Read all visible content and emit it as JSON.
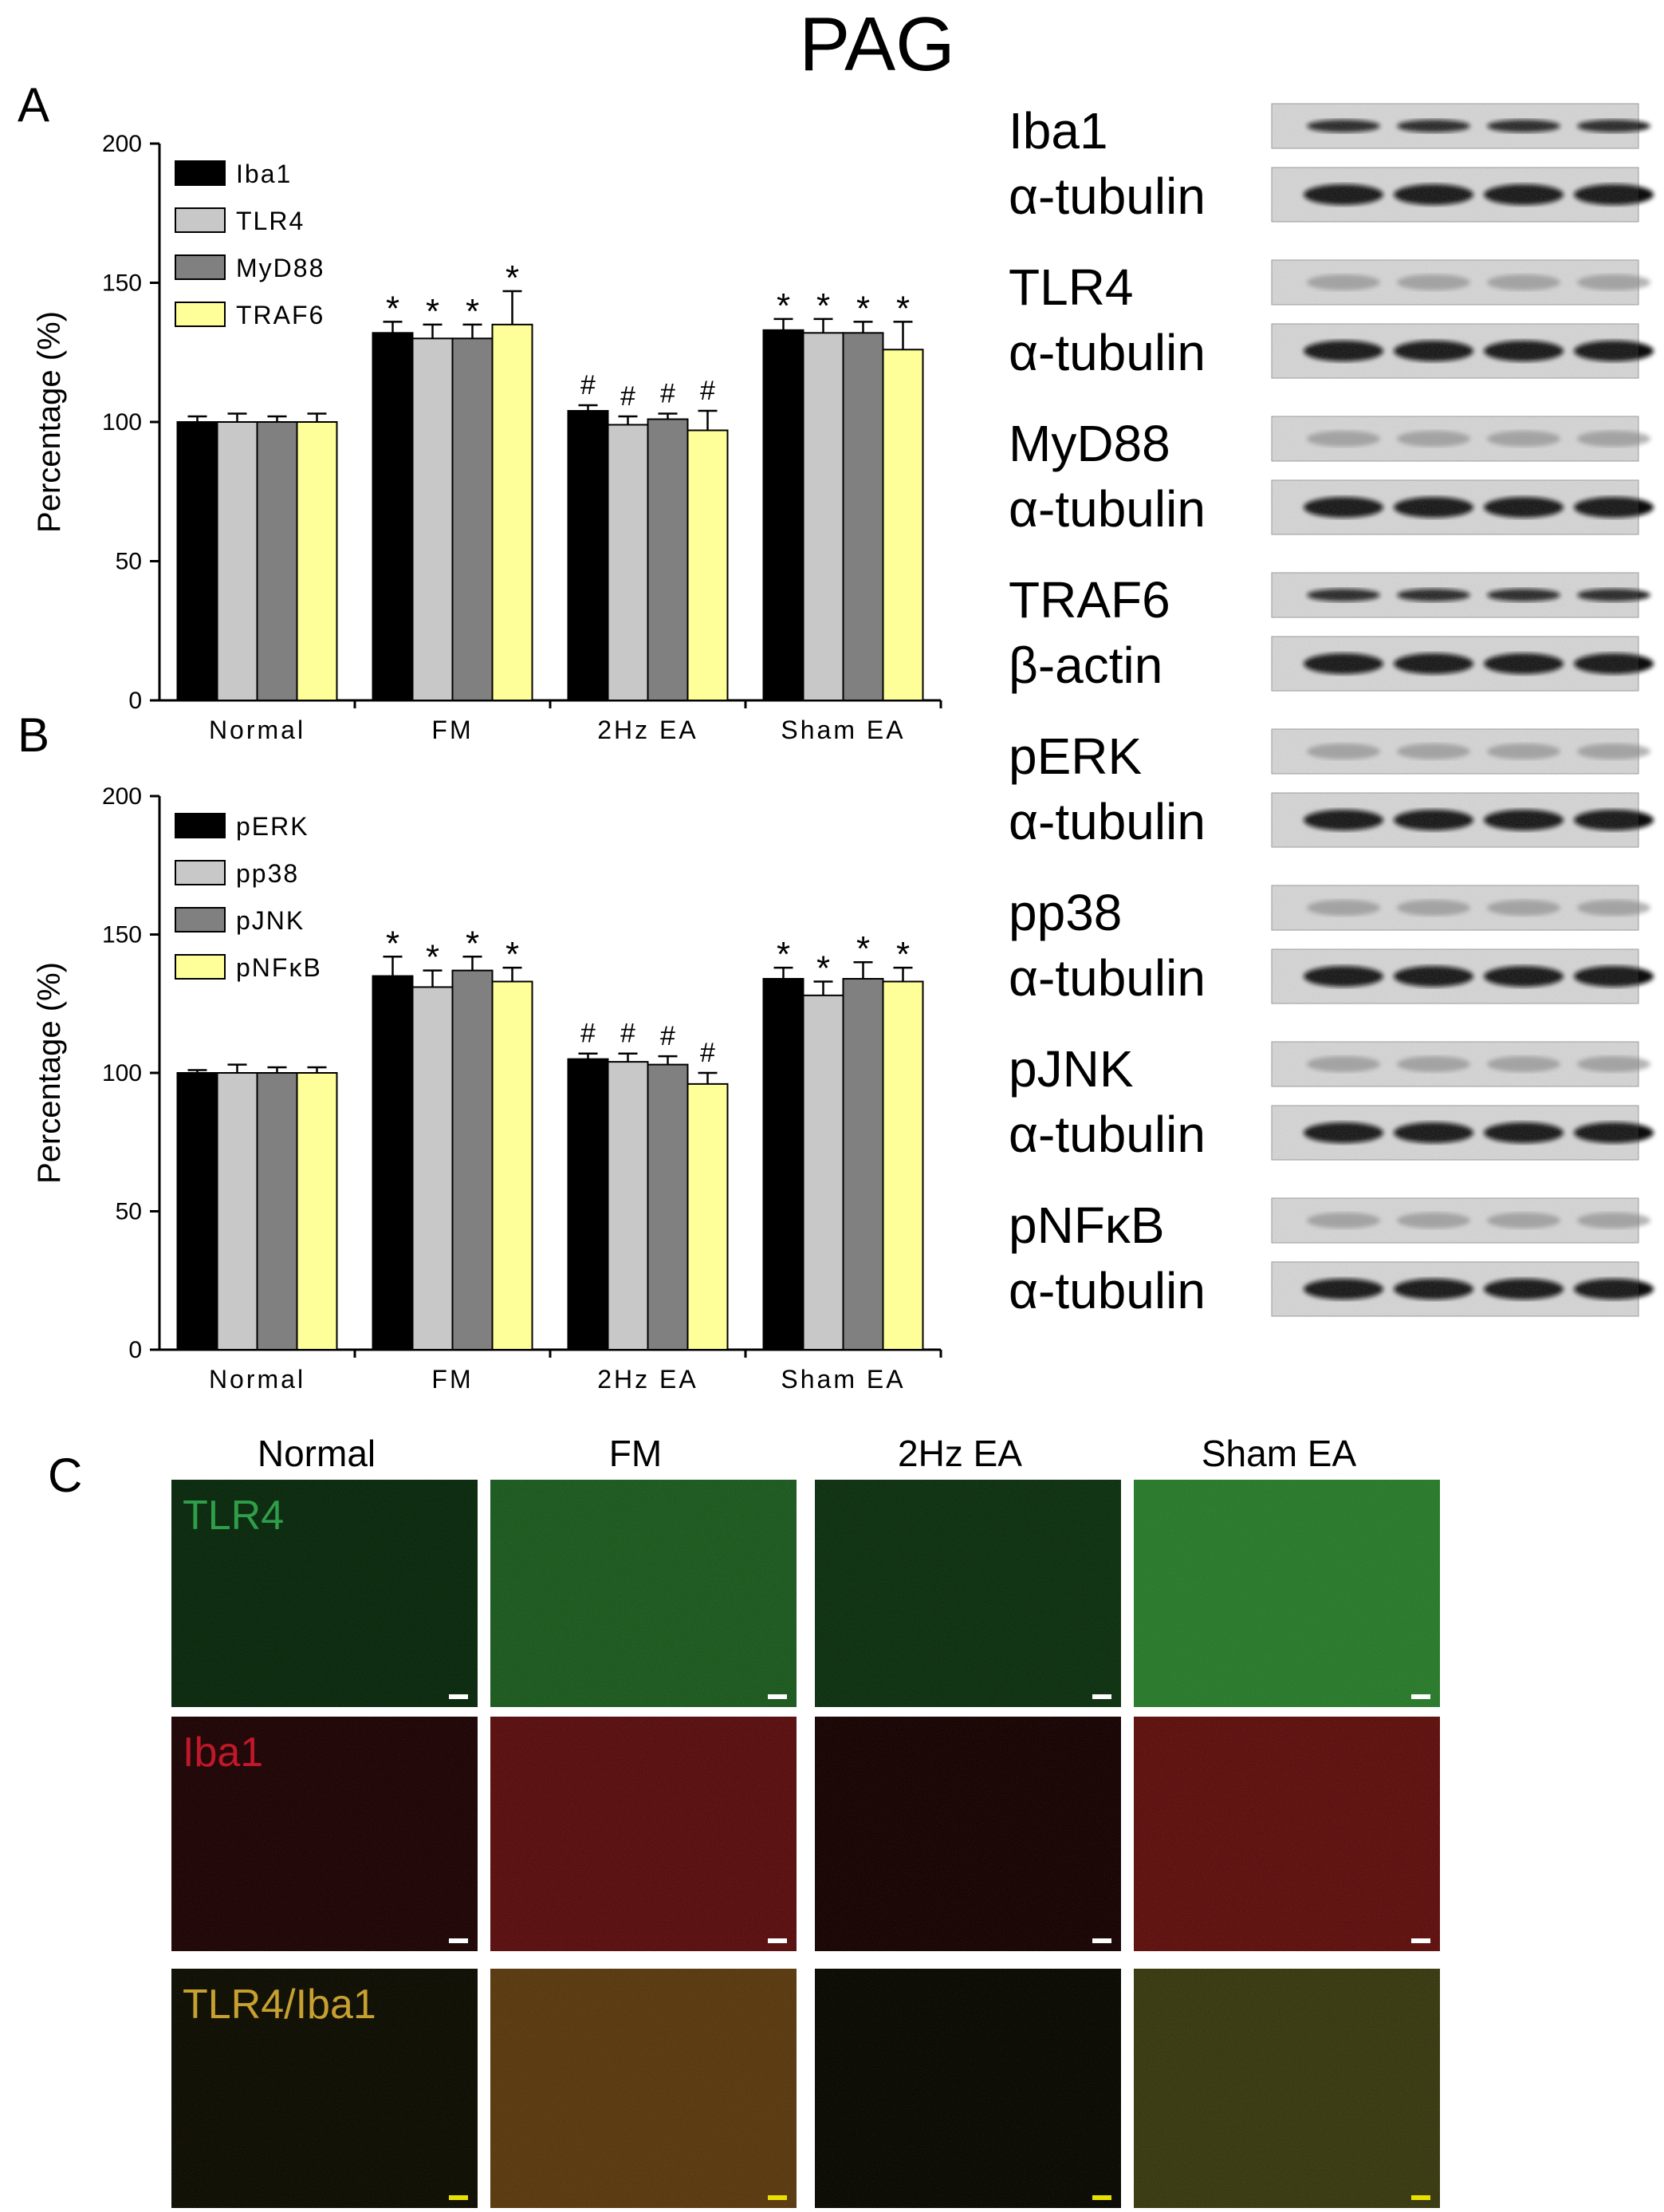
{
  "title": "PAG",
  "panel_labels": {
    "a": "A",
    "b": "B",
    "c": "C"
  },
  "chart_data": [
    {
      "type": "bar",
      "panel": "A",
      "ylabel": "Percentage (%)",
      "ylim": [
        0,
        200
      ],
      "yticks": [
        "0",
        "50",
        "100",
        "150",
        "200"
      ],
      "categories": [
        "Normal",
        "FM",
        "2Hz EA",
        "Sham EA"
      ],
      "legend_position": "top-left",
      "series": [
        {
          "name": "Iba1",
          "color": "#000000",
          "values": [
            100,
            132,
            104,
            133
          ],
          "errors": [
            2,
            4,
            2,
            4
          ]
        },
        {
          "name": "TLR4",
          "color": "#c8c8c8",
          "values": [
            100,
            130,
            99,
            132
          ],
          "errors": [
            3,
            5,
            3,
            5
          ]
        },
        {
          "name": "MyD88",
          "color": "#808080",
          "values": [
            100,
            130,
            101,
            132
          ],
          "errors": [
            2,
            5,
            2,
            4
          ]
        },
        {
          "name": "TRAF6",
          "color": "#ffff99",
          "values": [
            100,
            135,
            97,
            126
          ],
          "errors": [
            3,
            12,
            7,
            10
          ]
        }
      ],
      "annotations": [
        [
          "",
          "",
          "",
          ""
        ],
        [
          "*",
          "*",
          "*",
          "*"
        ],
        [
          "#",
          "#",
          "#",
          "#"
        ],
        [
          "*",
          "*",
          "*",
          "*"
        ]
      ]
    },
    {
      "type": "bar",
      "panel": "B",
      "ylabel": "Percentage (%)",
      "ylim": [
        0,
        200
      ],
      "yticks": [
        "0",
        "50",
        "100",
        "150",
        "200"
      ],
      "categories": [
        "Normal",
        "FM",
        "2Hz EA",
        "Sham EA"
      ],
      "legend_position": "top-left",
      "series": [
        {
          "name": "pERK",
          "color": "#000000",
          "values": [
            100,
            135,
            105,
            134
          ],
          "errors": [
            1,
            7,
            2,
            4
          ]
        },
        {
          "name": "pp38",
          "color": "#c8c8c8",
          "values": [
            100,
            131,
            104,
            128
          ],
          "errors": [
            3,
            6,
            3,
            5
          ]
        },
        {
          "name": "pJNK",
          "color": "#808080",
          "values": [
            100,
            137,
            103,
            134
          ],
          "errors": [
            2,
            5,
            3,
            6
          ]
        },
        {
          "name": "pNFκB",
          "color": "#ffff99",
          "values": [
            100,
            133,
            96,
            133
          ],
          "errors": [
            2,
            5,
            4,
            5
          ]
        }
      ],
      "annotations": [
        [
          "",
          "",
          "",
          ""
        ],
        [
          "*",
          "*",
          "*",
          "*"
        ],
        [
          "#",
          "#",
          "#",
          "#"
        ],
        [
          "*",
          "*",
          "*",
          "*"
        ]
      ]
    }
  ],
  "blots": [
    {
      "protein": "Iba1",
      "control": "α-tubulin"
    },
    {
      "protein": "TLR4",
      "control": "α-tubulin"
    },
    {
      "protein": "MyD88",
      "control": "α-tubulin"
    },
    {
      "protein": "TRAF6",
      "control": "β-actin"
    },
    {
      "protein": "pERK",
      "control": "α-tubulin"
    },
    {
      "protein": "pp38",
      "control": "α-tubulin"
    },
    {
      "protein": "pJNK",
      "control": "α-tubulin"
    },
    {
      "protein": "pNFκB",
      "control": "α-tubulin"
    }
  ],
  "micrographs": {
    "columns": [
      "Normal",
      "FM",
      "2Hz EA",
      "Sham EA"
    ],
    "rows": [
      {
        "label": "TLR4",
        "label_color": "#2e9e4a"
      },
      {
        "label": "Iba1",
        "label_color": "#c0182a"
      },
      {
        "label": "TLR4/Iba1",
        "label_color": "#c7a030"
      }
    ],
    "tile_base_colors": [
      [
        "#0b2a0e",
        "#1d5a20",
        "#0f3212",
        "#2a7a2c"
      ],
      [
        "#200606",
        "#5a1010",
        "#1a0505",
        "#5e1210"
      ],
      [
        "#100f04",
        "#5a3a10",
        "#0b0a03",
        "#3a3a12"
      ]
    ],
    "scale_bar_colors": [
      "#ffffff",
      "#ffffff",
      "#e8e000"
    ]
  }
}
